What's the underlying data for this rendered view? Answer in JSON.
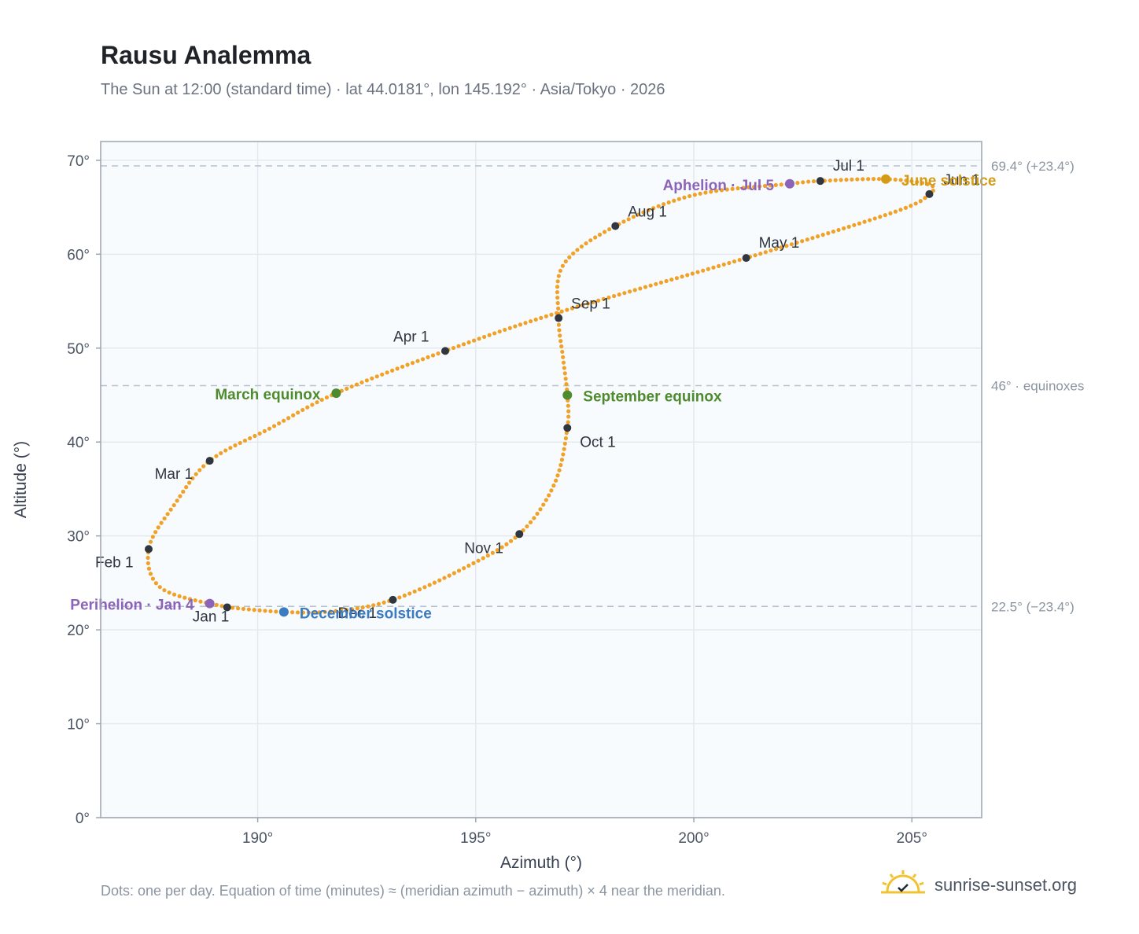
{
  "title": "Rausu Analemma",
  "subtitle": "The Sun at 12:00 (standard time) · lat 44.0181°, lon 145.192° · Asia/Tokyo · 2026",
  "footnote": "Dots: one per day. Equation of time (minutes) ≈ (meridian azimuth − azimuth) × 4 near the meridian.",
  "brand": {
    "name": "sunrise-sunset.org",
    "icon": "sun-logo-icon"
  },
  "colors": {
    "curve": "#f0a127",
    "month_point": "#2f3640",
    "june": "#d39b16",
    "december": "#3b7bbf",
    "equinox": "#4e8b2e",
    "apsis": "#8b63b8",
    "refline": "#b6c2cf",
    "plot_bg": "#f8fbfe",
    "grid": "#e4e9ef",
    "frame": "#9aa5b1"
  },
  "chart_data": {
    "type": "scatter",
    "xlabel": "Azimuth (°)",
    "ylabel": "Altitude (°)",
    "xlim": [
      186.4,
      206.6
    ],
    "ylim": [
      0,
      72
    ],
    "xticks": [
      190,
      195,
      200,
      205
    ],
    "xtick_labels": [
      "190°",
      "195°",
      "200°",
      "205°"
    ],
    "yticks": [
      0,
      10,
      20,
      30,
      40,
      50,
      60,
      70
    ],
    "ytick_labels": [
      "0°",
      "10°",
      "20°",
      "30°",
      "40°",
      "50°",
      "60°",
      "70°"
    ],
    "grid": true,
    "reference_lines": [
      {
        "y": 69.4,
        "label": "69.4° (+23.4°)"
      },
      {
        "y": 46.0,
        "label": "46° · equinoxes"
      },
      {
        "y": 22.5,
        "label": "22.5° (−23.4°)"
      }
    ],
    "path_anchors": [
      {
        "azimuth": 189.3,
        "altitude": 22.4
      },
      {
        "azimuth": 187.8,
        "altitude": 24.4
      },
      {
        "azimuth": 187.5,
        "altitude": 28.6
      },
      {
        "azimuth": 188.1,
        "altitude": 33.4
      },
      {
        "azimuth": 188.9,
        "altitude": 38.0
      },
      {
        "azimuth": 190.3,
        "altitude": 41.5
      },
      {
        "azimuth": 191.8,
        "altitude": 45.2
      },
      {
        "azimuth": 194.3,
        "altitude": 49.7
      },
      {
        "azimuth": 196.9,
        "altitude": 53.8
      },
      {
        "azimuth": 201.2,
        "altitude": 59.6
      },
      {
        "azimuth": 204.6,
        "altitude": 64.5
      },
      {
        "azimuth": 205.4,
        "altitude": 66.4
      },
      {
        "azimuth": 205.4,
        "altitude": 67.4
      },
      {
        "azimuth": 204.4,
        "altitude": 68.0
      },
      {
        "azimuth": 202.9,
        "altitude": 67.8
      },
      {
        "azimuth": 202.2,
        "altitude": 67.5
      },
      {
        "azimuth": 200.0,
        "altitude": 66.3
      },
      {
        "azimuth": 198.2,
        "altitude": 63.0
      },
      {
        "azimuth": 197.0,
        "altitude": 58.8
      },
      {
        "azimuth": 196.9,
        "altitude": 53.2
      },
      {
        "azimuth": 197.0,
        "altitude": 49.0
      },
      {
        "azimuth": 197.1,
        "altitude": 45.0
      },
      {
        "azimuth": 197.1,
        "altitude": 41.5
      },
      {
        "azimuth": 196.8,
        "altitude": 35.5
      },
      {
        "azimuth": 196.0,
        "altitude": 30.2
      },
      {
        "azimuth": 194.7,
        "altitude": 26.5
      },
      {
        "azimuth": 193.1,
        "altitude": 23.2
      },
      {
        "azimuth": 191.8,
        "altitude": 22.0
      },
      {
        "azimuth": 190.6,
        "altitude": 21.9
      },
      {
        "azimuth": 189.3,
        "altitude": 22.4
      }
    ],
    "month_points": [
      {
        "label": "Jan 1",
        "azimuth": 189.3,
        "altitude": 22.4
      },
      {
        "label": "Feb 1",
        "azimuth": 187.5,
        "altitude": 28.6
      },
      {
        "label": "Mar 1",
        "azimuth": 188.9,
        "altitude": 38.0
      },
      {
        "label": "Apr 1",
        "azimuth": 194.3,
        "altitude": 49.7
      },
      {
        "label": "May 1",
        "azimuth": 201.2,
        "altitude": 59.6
      },
      {
        "label": "Jun 1",
        "azimuth": 205.4,
        "altitude": 66.4
      },
      {
        "label": "Jul 1",
        "azimuth": 202.9,
        "altitude": 67.8
      },
      {
        "label": "Aug 1",
        "azimuth": 198.2,
        "altitude": 63.0
      },
      {
        "label": "Sep 1",
        "azimuth": 196.9,
        "altitude": 53.2
      },
      {
        "label": "Oct 1",
        "azimuth": 197.1,
        "altitude": 41.5
      },
      {
        "label": "Nov 1",
        "azimuth": 196.0,
        "altitude": 30.2
      },
      {
        "label": "Dec 1",
        "azimuth": 193.1,
        "altitude": 23.2
      }
    ],
    "events": [
      {
        "label": "June solstice",
        "azimuth": 204.4,
        "altitude": 68.0,
        "kind": "june"
      },
      {
        "label": "December solstice",
        "azimuth": 190.6,
        "altitude": 21.9,
        "kind": "december"
      },
      {
        "label": "March equinox",
        "azimuth": 191.8,
        "altitude": 45.2,
        "kind": "equinox"
      },
      {
        "label": "September equinox",
        "azimuth": 197.1,
        "altitude": 45.0,
        "kind": "equinox"
      },
      {
        "label": "Perihelion · Jan 4",
        "azimuth": 188.9,
        "altitude": 22.8,
        "kind": "apsis"
      },
      {
        "label": "Aphelion · Jul 5",
        "azimuth": 202.2,
        "altitude": 67.5,
        "kind": "apsis"
      }
    ]
  }
}
